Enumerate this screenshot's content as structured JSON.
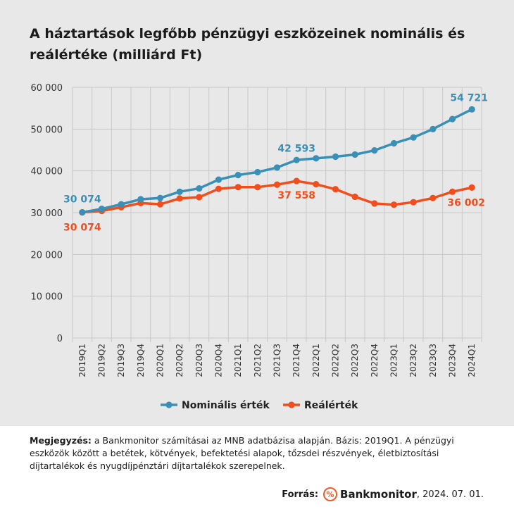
{
  "title_lines": [
    "A háztartások legfőbb pénzügyi eszközeinek nominális és",
    "reálértéke (milliárd Ft)"
  ],
  "colors": {
    "nominal": "#3a8fb7",
    "real": "#f04e1d",
    "grid": "#c9c9c9",
    "panel": "#e8e8e8"
  },
  "chart_data": {
    "type": "line",
    "categories": [
      "2019Q1",
      "2019Q2",
      "2019Q3",
      "2019Q4",
      "2020Q1",
      "2020Q2",
      "2020Q3",
      "2020Q4",
      "2021Q1",
      "2021Q2",
      "2021Q3",
      "2021Q4",
      "2022Q1",
      "2022Q2",
      "2022Q3",
      "2022Q4",
      "2023Q1",
      "2023Q2",
      "2023Q3",
      "2023Q4",
      "2024Q1"
    ],
    "series": [
      {
        "name": "Nominális érték",
        "values": [
          30074,
          30900,
          32000,
          33200,
          33500,
          35000,
          35800,
          37900,
          39000,
          39700,
          40800,
          42593,
          43000,
          43400,
          43900,
          44900,
          46600,
          48000,
          50000,
          52400,
          54721
        ]
      },
      {
        "name": "Reálérték",
        "values": [
          30074,
          30400,
          31300,
          32300,
          32000,
          33400,
          33700,
          35700,
          36100,
          36100,
          36700,
          37558,
          36800,
          35600,
          33800,
          32200,
          31900,
          32500,
          33500,
          35000,
          36002
        ]
      }
    ],
    "y_ticks": [
      "0",
      "10 000",
      "20 000",
      "30 000",
      "40 000",
      "50 000",
      "60 000"
    ],
    "ylim": [
      0,
      60000
    ],
    "grid": true,
    "legend_position": "bottom",
    "annotations": [
      {
        "series": 0,
        "index": 0,
        "text": "30 074"
      },
      {
        "series": 0,
        "index": 11,
        "text": "42 593"
      },
      {
        "series": 0,
        "index": 20,
        "text": "54 721"
      },
      {
        "series": 1,
        "index": 0,
        "text": "30 074"
      },
      {
        "series": 1,
        "index": 11,
        "text": "37 558"
      },
      {
        "series": 1,
        "index": 20,
        "text": "36 002"
      }
    ]
  },
  "note": {
    "label": "Megjegyzés:",
    "text": " a Bankmonitor számításai az MNB adatbázisa alapján. Bázis: 2019Q1. A pénzügyi eszközök között a betétek, kötvények, befektetési alapok, tőzsdei részvények, életbiztosítási díjtartalékok és nyugdíjpénztári díjtartalékok szerepelnek."
  },
  "source": {
    "label": "Forrás:",
    "logo_glyph": "%",
    "brand": "Bankmonitor",
    "date": ", 2024. 07. 01."
  }
}
